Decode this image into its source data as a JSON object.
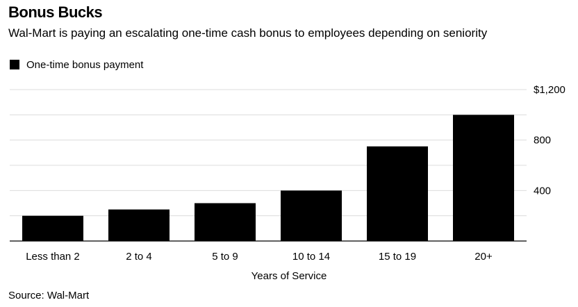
{
  "chart_data": {
    "type": "bar",
    "title": "Bonus Bucks",
    "subtitle": "Wal-Mart is paying an escalating one-time cash bonus to employees depending on seniority",
    "xlabel": "Years of Service",
    "ylabel": "",
    "source": "Source: Wal-Mart",
    "categories": [
      "Less than 2",
      "2 to 4",
      "5 to 9",
      "10 to 14",
      "15 to 19",
      "20+"
    ],
    "series": [
      {
        "name": "One-time bonus payment",
        "values": [
          200,
          250,
          300,
          400,
          750,
          1000
        ],
        "color": "#000000"
      }
    ],
    "ylim": [
      0,
      1200
    ],
    "yticks": [
      {
        "value": 400,
        "label": "400"
      },
      {
        "value": 800,
        "label": "800"
      },
      {
        "value": 1200,
        "label": "$1,200"
      }
    ],
    "grid": true,
    "grid_step": 200,
    "legend_position": "top-left",
    "y_axis_side": "right"
  }
}
